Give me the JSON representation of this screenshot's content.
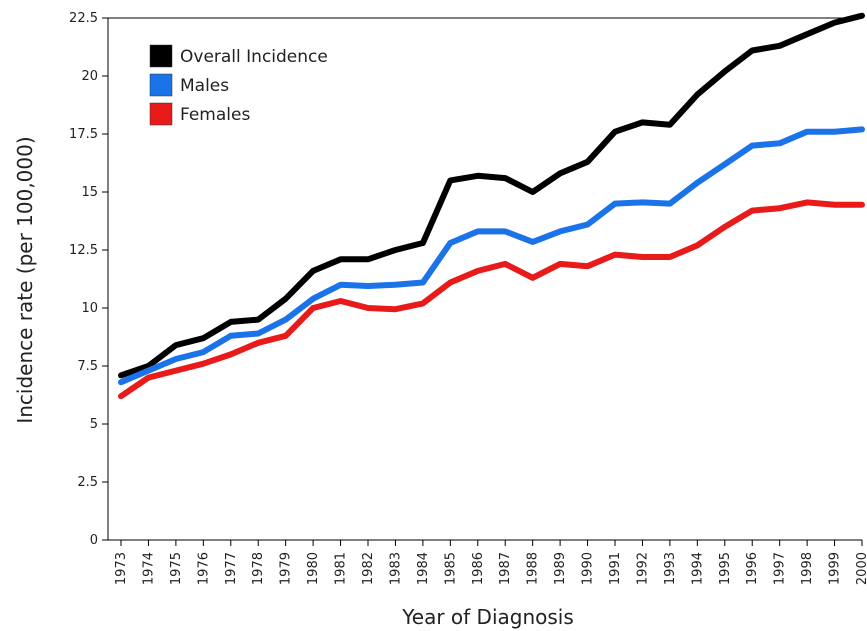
{
  "chart_data": {
    "type": "line",
    "title": "",
    "xlabel": "Year of Diagnosis",
    "ylabel": "Incidence rate (per 100,000)",
    "xlim": [
      1973,
      2000
    ],
    "ylim": [
      0,
      22.5
    ],
    "yticks": [
      "0",
      "2.5",
      "5",
      "7.5",
      "10",
      "12.5",
      "15",
      "17.5",
      "20",
      "22.5"
    ],
    "x": [
      1973,
      1974,
      1975,
      1976,
      1977,
      1978,
      1979,
      1980,
      1981,
      1982,
      1983,
      1984,
      1985,
      1986,
      1987,
      1988,
      1989,
      1990,
      1991,
      1992,
      1993,
      1994,
      1995,
      1996,
      1997,
      1998,
      1999,
      2000
    ],
    "xticks": [
      "1973",
      "1974",
      "1975",
      "1976",
      "1977",
      "1978",
      "1979",
      "1980",
      "1981",
      "1982",
      "1983",
      "1984",
      "1985",
      "1986",
      "1987",
      "1988",
      "1989",
      "1990",
      "1991",
      "1992",
      "1993",
      "1994",
      "1995",
      "1996",
      "1997",
      "1998",
      "1999",
      "2000"
    ],
    "legend_position": "top-left",
    "grid": false,
    "series": [
      {
        "name": "Overall Incidence",
        "color": "#000000",
        "values": [
          7.1,
          7.5,
          8.4,
          8.7,
          9.4,
          9.5,
          10.4,
          11.6,
          12.1,
          12.1,
          12.5,
          12.8,
          15.5,
          15.7,
          15.6,
          15.0,
          15.8,
          16.3,
          17.6,
          18.0,
          17.9,
          19.2,
          20.2,
          21.1,
          21.3,
          21.8,
          22.3,
          22.6
        ]
      },
      {
        "name": "Males",
        "color": "#1a73e8",
        "values": [
          6.8,
          7.3,
          7.8,
          8.1,
          8.8,
          8.9,
          9.5,
          10.4,
          11.0,
          10.95,
          11.0,
          11.1,
          12.8,
          13.3,
          13.3,
          12.85,
          13.3,
          13.6,
          14.5,
          14.55,
          14.5,
          15.4,
          16.2,
          17.0,
          17.1,
          17.6,
          17.6,
          17.7
        ]
      },
      {
        "name": "Females",
        "color": "#e81a1a",
        "values": [
          6.2,
          7.0,
          7.3,
          7.6,
          8.0,
          8.5,
          8.8,
          10.0,
          10.3,
          10.0,
          9.95,
          10.2,
          11.1,
          11.6,
          11.9,
          11.3,
          11.9,
          11.8,
          12.3,
          12.2,
          12.2,
          12.7,
          13.5,
          14.2,
          14.3,
          14.55,
          14.45,
          14.45
        ]
      }
    ]
  }
}
